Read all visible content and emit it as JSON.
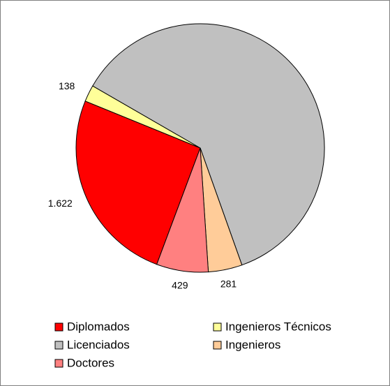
{
  "chart_data": {
    "type": "pie",
    "categories": [
      "Diplomados",
      "Ingenieros Técnicos",
      "Licenciados",
      "Ingenieros",
      "Doctores"
    ],
    "values": [
      1622,
      138,
      3900,
      281,
      429
    ],
    "value_labels": [
      "1.622",
      "138",
      null,
      "281",
      "429"
    ],
    "colors": [
      "#ff0000",
      "#ffff99",
      "#c0c0c0",
      "#ffcc99",
      "#ff8080"
    ],
    "legend": "bottom"
  }
}
